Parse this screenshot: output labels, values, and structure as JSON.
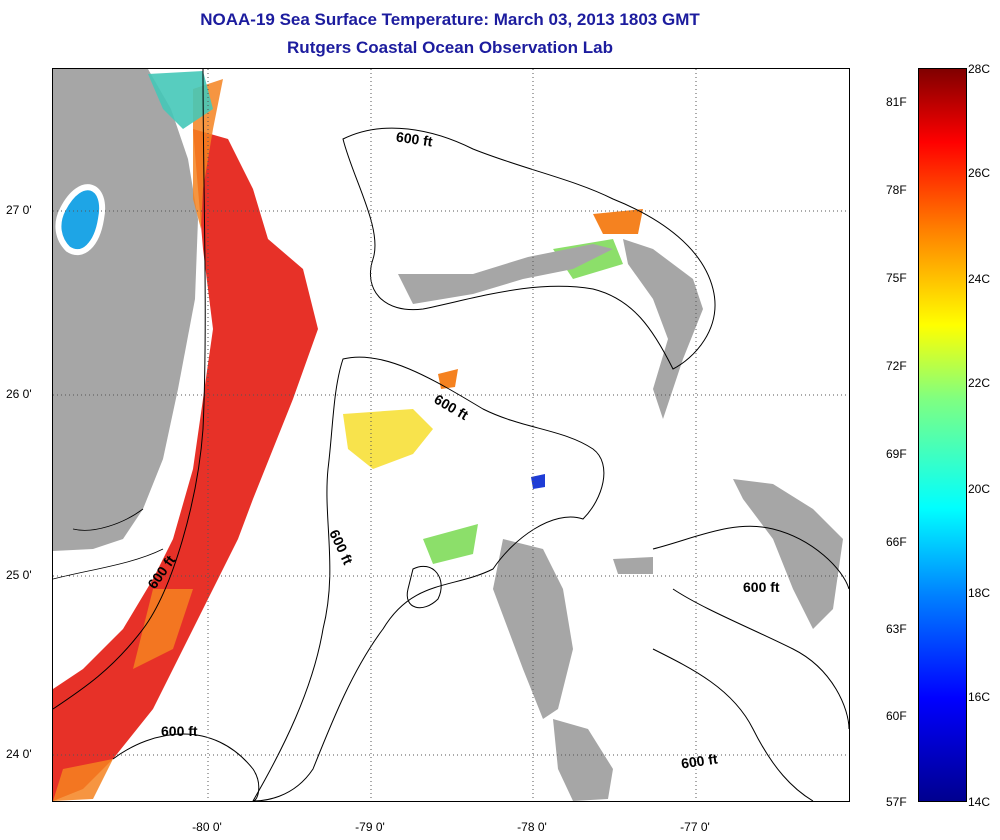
{
  "header": {
    "title": "NOAA-19 Sea Surface Temperature:  March 03, 2013 1803 GMT",
    "subtitle": "Rutgers Coastal Ocean Observation Lab"
  },
  "map": {
    "lat_labels": [
      "27 0'",
      "26 0'",
      "25 0'",
      "24 0'"
    ],
    "lon_labels": [
      "-80 0'",
      "-79 0'",
      "-78 0'",
      "-77 0'"
    ],
    "contour_labels": [
      "600 ft",
      "600 ft",
      "600 ft",
      "600 ft",
      "600 ft",
      "600 ft",
      "600 ft"
    ],
    "colors": {
      "land": "#a6a6a6",
      "warm": "#e6261c",
      "mid": "#f7e038",
      "cool": "#1ea5e6"
    }
  },
  "colorbar": {
    "celsius_labels": [
      "28C",
      "26C",
      "24C",
      "22C",
      "20C",
      "18C",
      "16C",
      "14C"
    ],
    "fahrenheit_labels": [
      "81F",
      "78F",
      "75F",
      "72F",
      "69F",
      "66F",
      "63F",
      "60F",
      "57F"
    ]
  }
}
